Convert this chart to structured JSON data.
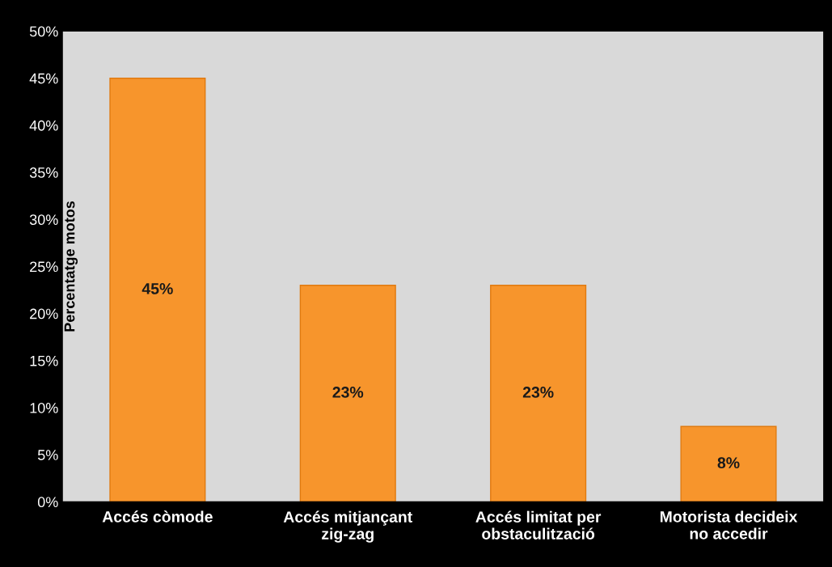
{
  "chart_data": {
    "type": "bar",
    "ylabel": "Percentatge motos",
    "categories": [
      "Accés còmode",
      "Accés mitjançant\nzig-zag",
      "Accés limitat per\nobstaculització",
      "Motorista decideix\nno accedir"
    ],
    "values": [
      45,
      23,
      23,
      8
    ],
    "color": "#f7952c",
    "value_labels": [
      "45%",
      "23%",
      "23%",
      "8%"
    ],
    "ylim": [
      0,
      50
    ],
    "yticks": [
      {
        "value": 0,
        "label": "0%"
      },
      {
        "value": 5,
        "label": "5%"
      },
      {
        "value": 10,
        "label": "10%"
      },
      {
        "value": 15,
        "label": "15%"
      },
      {
        "value": 20,
        "label": "20%"
      },
      {
        "value": 25,
        "label": "25%"
      },
      {
        "value": 30,
        "label": "30%"
      },
      {
        "value": 35,
        "label": "35%"
      },
      {
        "value": 40,
        "label": "40%"
      },
      {
        "value": 45,
        "label": "45%"
      },
      {
        "value": 50,
        "label": "50%"
      }
    ],
    "grid": false
  }
}
